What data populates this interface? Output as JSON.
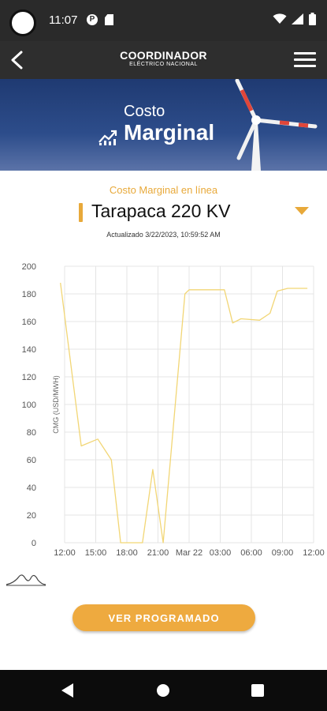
{
  "status_bar": {
    "time": "11:07",
    "p_icon": "P"
  },
  "app_bar": {
    "logo_main": "COORDINADOR",
    "logo_sub": "ELÉCTRICO NACIONAL"
  },
  "banner": {
    "title_small": "Costo",
    "title_large": "Marginal"
  },
  "section": {
    "subtitle": "Costo Marginal en línea",
    "station": "Tarapaca 220 KV",
    "updated": "Actualizado 3/22/2023, 10:59:52 AM"
  },
  "chart_data": {
    "type": "line",
    "ylabel": "CMG (USD/MWH)",
    "xlabel": "",
    "ylim": [
      0,
      200
    ],
    "yticks": [
      0,
      20,
      40,
      60,
      80,
      100,
      120,
      140,
      160,
      180,
      200
    ],
    "x_tick_labels": [
      "12:00",
      "15:00",
      "18:00",
      "21:00",
      "Mar 22",
      "03:00",
      "06:00",
      "09:00",
      "12:00"
    ],
    "x_hours": [
      0,
      3,
      6,
      9,
      12,
      15,
      18,
      21,
      24
    ],
    "xlim_hours": [
      0,
      24
    ],
    "grid": true,
    "series": [
      {
        "color": "#f2d675",
        "points": [
          [
            -0.4,
            188
          ],
          [
            1.6,
            70
          ],
          [
            3.2,
            75
          ],
          [
            4.5,
            60
          ],
          [
            5.4,
            0
          ],
          [
            7.5,
            0
          ],
          [
            8.5,
            53
          ],
          [
            9.5,
            0
          ],
          [
            11.6,
            180
          ],
          [
            12.0,
            183
          ],
          [
            15.4,
            183
          ],
          [
            16.2,
            159
          ],
          [
            17.0,
            162
          ],
          [
            18.8,
            161
          ],
          [
            19.8,
            166
          ],
          [
            20.5,
            182
          ],
          [
            21.5,
            184
          ],
          [
            23.4,
            184
          ]
        ]
      }
    ]
  },
  "button_programado": "VER PROGRAMADO",
  "icons": {
    "back": "arrow-left-icon",
    "menu": "hamburger-menu-icon",
    "trend": "trending-up-icon",
    "caret": "caret-down-icon",
    "curve": "distribution-curve-icon"
  }
}
